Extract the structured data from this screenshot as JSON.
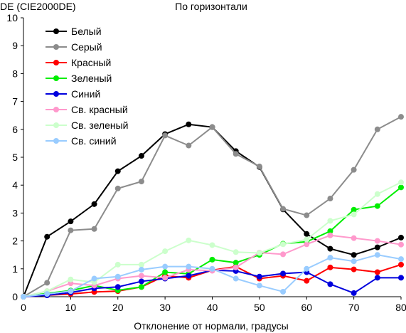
{
  "chart_data": {
    "type": "line",
    "title": "По горизонтали",
    "ylabel": "DE (CIE2000DE)",
    "xlabel": "Отклонение от нормали, градусы",
    "x": [
      0,
      5,
      10,
      15,
      20,
      25,
      30,
      35,
      40,
      45,
      50,
      55,
      60,
      65,
      70,
      75,
      80
    ],
    "xticks": [
      0,
      10,
      20,
      30,
      40,
      50,
      60,
      70,
      80
    ],
    "yticks": [
      0,
      1,
      2,
      3,
      4,
      5,
      6,
      7,
      8,
      9,
      10
    ],
    "xlim": [
      0,
      80
    ],
    "ylim": [
      0,
      10
    ],
    "grid": "none",
    "legend_position": "top-left",
    "series": [
      {
        "name": "Белый",
        "color": "#000000",
        "values": [
          0,
          2.15,
          2.7,
          3.32,
          4.5,
          5.05,
          5.83,
          6.18,
          6.08,
          5.22,
          4.65,
          3.13,
          2.25,
          1.72,
          1.5,
          1.77,
          2.12
        ]
      },
      {
        "name": "Серый",
        "color": "#8c8c8c",
        "values": [
          0,
          0.5,
          2.38,
          2.43,
          3.88,
          4.13,
          5.78,
          5.42,
          6.08,
          5.12,
          4.67,
          3.15,
          2.92,
          3.52,
          4.55,
          6.0,
          6.45
        ]
      },
      {
        "name": "Красный",
        "color": "#ff0000",
        "values": [
          0,
          0.05,
          0.1,
          0.17,
          0.2,
          0.35,
          0.75,
          0.68,
          0.95,
          1.08,
          0.65,
          0.75,
          0.57,
          1.05,
          0.98,
          0.88,
          1.15
        ]
      },
      {
        "name": "Зеленый",
        "color": "#00ee00",
        "values": [
          0,
          0.12,
          0.22,
          0.4,
          0.23,
          0.35,
          0.88,
          0.82,
          1.33,
          1.22,
          1.5,
          1.9,
          1.97,
          2.35,
          3.12,
          3.25,
          3.92
        ]
      },
      {
        "name": "Синий",
        "color": "#0000dd",
        "values": [
          0,
          0.05,
          0.15,
          0.3,
          0.35,
          0.55,
          0.65,
          0.75,
          0.95,
          0.92,
          0.72,
          0.83,
          0.88,
          0.45,
          0.13,
          0.68,
          0.68
        ]
      },
      {
        "name": "Св. красный",
        "color": "#ff99cc",
        "values": [
          0,
          0.2,
          0.48,
          0.4,
          0.65,
          0.75,
          0.68,
          0.97,
          0.93,
          1.05,
          1.58,
          1.52,
          1.88,
          2.2,
          2.1,
          2.0,
          1.87
        ]
      },
      {
        "name": "Св. зеленый",
        "color": "#ccffcc",
        "values": [
          0,
          0.2,
          0.62,
          0.52,
          1.15,
          1.15,
          1.63,
          2.02,
          1.85,
          1.6,
          1.57,
          1.88,
          2.05,
          2.72,
          2.95,
          3.68,
          4.1
        ]
      },
      {
        "name": "Св. синий",
        "color": "#99ccff",
        "values": [
          0,
          0.1,
          0.2,
          0.65,
          0.72,
          0.97,
          1.08,
          1.08,
          1.0,
          0.65,
          0.4,
          0.18,
          1.0,
          1.4,
          1.27,
          1.5,
          1.35
        ]
      }
    ]
  }
}
